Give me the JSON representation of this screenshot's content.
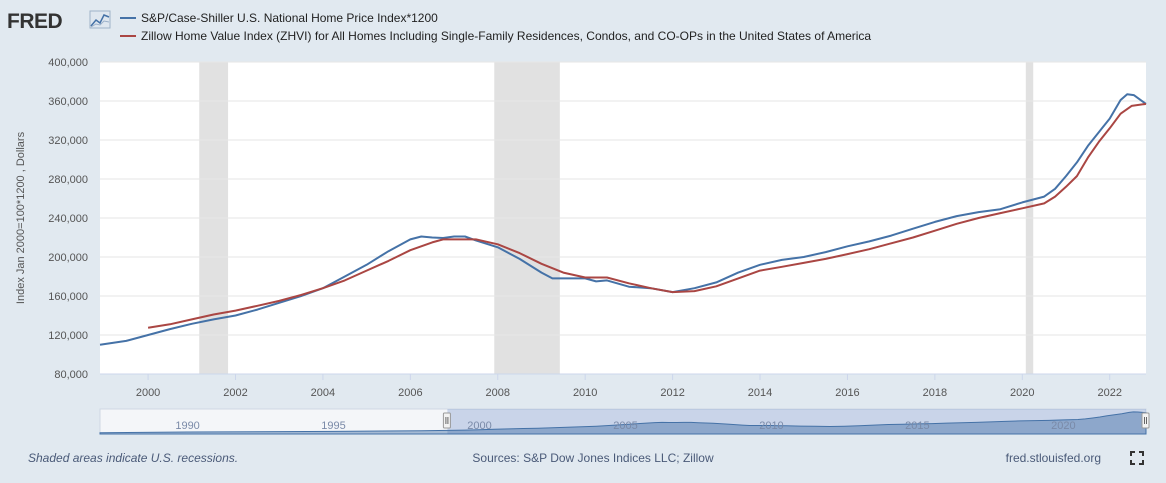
{
  "logo": {
    "text": "FRED"
  },
  "footer": {
    "recession_note": "Shaded areas indicate U.S. recessions.",
    "sources": "Sources: S&P Dow Jones Indices LLC; Zillow",
    "site": "fred.stlouisfed.org",
    "fullscreen_icon": "fullscreen-icon"
  },
  "navigator": {
    "labels": [
      "1990",
      "1995",
      "2000",
      "2005",
      "2010",
      "2015",
      "2020"
    ],
    "selection_start": 1998.9,
    "selection_end": 2022.83,
    "range_start": 1987.0,
    "range_end": 2022.83
  },
  "colors": {
    "series1": "#4572a7",
    "series2": "#aa4643",
    "recession": "#e1e1e1",
    "plot_bg": "#ffffff",
    "page_bg": "#e1e9f0",
    "grid": "#e6e6e6"
  },
  "chart_data": {
    "type": "line",
    "title": "",
    "xlabel": "",
    "ylabel": "Index Jan 2000=100*1200 , Dollars",
    "xlim": [
      1998.9,
      2022.83
    ],
    "ylim": [
      80000,
      400000
    ],
    "yticks": [
      80000,
      120000,
      160000,
      200000,
      240000,
      280000,
      320000,
      360000,
      400000
    ],
    "ytick_labels": [
      "80,000",
      "120,000",
      "160,000",
      "200,000",
      "240,000",
      "280,000",
      "320,000",
      "360,000",
      "400,000"
    ],
    "xticks": [
      2000,
      2002,
      2004,
      2006,
      2008,
      2010,
      2012,
      2014,
      2016,
      2018,
      2020,
      2022
    ],
    "xtick_labels": [
      "2000",
      "2002",
      "2004",
      "2006",
      "2008",
      "2010",
      "2012",
      "2014",
      "2016",
      "2018",
      "2020",
      "2022"
    ],
    "grid": "horizontal",
    "legend_position": "top-left",
    "recessions": [
      [
        2001.17,
        2001.83
      ],
      [
        2007.92,
        2009.42
      ],
      [
        2020.08,
        2020.25
      ]
    ],
    "series": [
      {
        "name": "S&P/Case-Shiller U.S. National Home Price Index*1200",
        "color": "#4572a7",
        "points": [
          [
            1998.9,
            110000
          ],
          [
            1999.5,
            114000
          ],
          [
            2000.0,
            120000
          ],
          [
            2000.5,
            126000
          ],
          [
            2001.0,
            131500
          ],
          [
            2001.5,
            136000
          ],
          [
            2002.0,
            140000
          ],
          [
            2002.5,
            146000
          ],
          [
            2003.0,
            153000
          ],
          [
            2003.5,
            160000
          ],
          [
            2004.0,
            168000
          ],
          [
            2004.5,
            180000
          ],
          [
            2005.0,
            192000
          ],
          [
            2005.5,
            206000
          ],
          [
            2006.0,
            218000
          ],
          [
            2006.25,
            221000
          ],
          [
            2006.5,
            220000
          ],
          [
            2006.75,
            219500
          ],
          [
            2007.0,
            221000
          ],
          [
            2007.25,
            221000
          ],
          [
            2007.5,
            217000
          ],
          [
            2008.0,
            210000
          ],
          [
            2008.5,
            198000
          ],
          [
            2009.0,
            184000
          ],
          [
            2009.25,
            178000
          ],
          [
            2009.5,
            178000
          ],
          [
            2009.75,
            178000
          ],
          [
            2010.0,
            178000
          ],
          [
            2010.25,
            175000
          ],
          [
            2010.5,
            176000
          ],
          [
            2011.0,
            169500
          ],
          [
            2011.5,
            168000
          ],
          [
            2012.0,
            164000
          ],
          [
            2012.5,
            168000
          ],
          [
            2013.0,
            174000
          ],
          [
            2013.5,
            184000
          ],
          [
            2014.0,
            192000
          ],
          [
            2014.5,
            197000
          ],
          [
            2015.0,
            200000
          ],
          [
            2015.5,
            205000
          ],
          [
            2016.0,
            211000
          ],
          [
            2016.5,
            216000
          ],
          [
            2017.0,
            222000
          ],
          [
            2017.5,
            229000
          ],
          [
            2018.0,
            236000
          ],
          [
            2018.5,
            242000
          ],
          [
            2019.0,
            246000
          ],
          [
            2019.5,
            249000
          ],
          [
            2020.0,
            256000
          ],
          [
            2020.5,
            262000
          ],
          [
            2020.75,
            270000
          ],
          [
            2021.0,
            283000
          ],
          [
            2021.25,
            297000
          ],
          [
            2021.5,
            314000
          ],
          [
            2021.75,
            328000
          ],
          [
            2022.0,
            342000
          ],
          [
            2022.25,
            361000
          ],
          [
            2022.4,
            367000
          ],
          [
            2022.55,
            366000
          ],
          [
            2022.83,
            357000
          ]
        ]
      },
      {
        "name": "Zillow Home Value Index (ZHVI) for All Homes Including Single-Family Residences, Condos, and CO-OPs in the United States of America",
        "color": "#aa4643",
        "points": [
          [
            2000.0,
            127500
          ],
          [
            2000.5,
            131000
          ],
          [
            2001.0,
            136000
          ],
          [
            2001.5,
            141000
          ],
          [
            2002.0,
            145000
          ],
          [
            2002.5,
            150000
          ],
          [
            2003.0,
            155000
          ],
          [
            2003.5,
            161000
          ],
          [
            2004.0,
            168000
          ],
          [
            2004.5,
            176000
          ],
          [
            2005.0,
            186000
          ],
          [
            2005.5,
            196000
          ],
          [
            2006.0,
            207000
          ],
          [
            2006.5,
            215000
          ],
          [
            2006.75,
            218000
          ],
          [
            2007.0,
            218000
          ],
          [
            2007.5,
            218000
          ],
          [
            2008.0,
            213000
          ],
          [
            2008.5,
            204000
          ],
          [
            2009.0,
            193000
          ],
          [
            2009.5,
            184000
          ],
          [
            2010.0,
            179000
          ],
          [
            2010.5,
            179000
          ],
          [
            2011.0,
            173000
          ],
          [
            2011.5,
            168000
          ],
          [
            2012.0,
            164000
          ],
          [
            2012.5,
            165000
          ],
          [
            2013.0,
            170000
          ],
          [
            2013.5,
            178000
          ],
          [
            2014.0,
            186000
          ],
          [
            2014.5,
            190000
          ],
          [
            2015.0,
            194000
          ],
          [
            2015.5,
            198000
          ],
          [
            2016.0,
            203000
          ],
          [
            2016.5,
            208000
          ],
          [
            2017.0,
            214000
          ],
          [
            2017.5,
            220000
          ],
          [
            2018.0,
            227000
          ],
          [
            2018.5,
            234000
          ],
          [
            2019.0,
            240000
          ],
          [
            2019.5,
            245000
          ],
          [
            2020.0,
            250000
          ],
          [
            2020.5,
            255000
          ],
          [
            2020.75,
            262000
          ],
          [
            2021.0,
            272000
          ],
          [
            2021.25,
            283000
          ],
          [
            2021.5,
            302000
          ],
          [
            2021.75,
            318000
          ],
          [
            2022.0,
            332000
          ],
          [
            2022.25,
            347000
          ],
          [
            2022.5,
            355000
          ],
          [
            2022.83,
            357000
          ]
        ]
      }
    ]
  }
}
